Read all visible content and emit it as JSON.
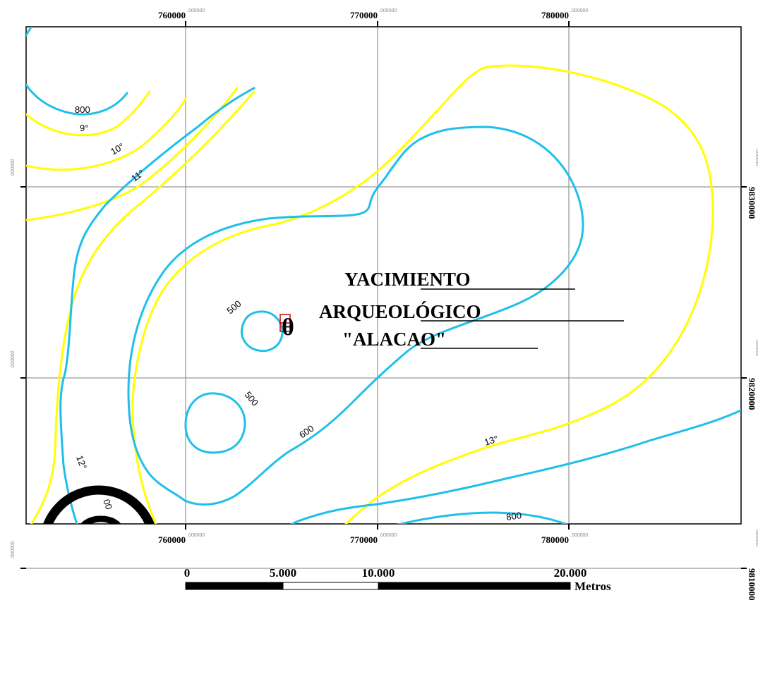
{
  "map": {
    "title_lines": [
      "YACIMIENTO",
      "ARQUEOLÓGICO",
      "\"ALACAO\""
    ],
    "x_ticks": [
      {
        "label": "760000",
        "suffix": ".000000"
      },
      {
        "label": "770000",
        "suffix": ".000000"
      },
      {
        "label": "780000",
        "suffix": ".000000"
      }
    ],
    "y_ticks": [
      {
        "label": "9830000",
        "suffix": ".000000"
      },
      {
        "label": "9820000",
        "suffix": ".000000"
      },
      {
        "label": "9810000",
        "suffix": ".000000"
      }
    ],
    "contour_labels": {
      "elev_800_top": "800",
      "temp_9": "9°",
      "temp_10": "10°",
      "temp_11": "11°",
      "elev_500_a": "500",
      "elev_500_b": "500",
      "elev_600": "600",
      "temp_12": "12°",
      "temp_13": "13°",
      "elev_00": "00",
      "elev_800_bottom": "800"
    },
    "site_marker": "θ",
    "copyright_symbol": "©",
    "colors": {
      "elevation_contour": "#1ec0ea",
      "temperature_isotherm": "#ffff00",
      "grid": "#808080",
      "site_marker": "#cc0000"
    }
  },
  "scale_bar": {
    "labels": [
      "0",
      "5.000",
      "10.000",
      "20.000"
    ],
    "unit": "Metros"
  }
}
